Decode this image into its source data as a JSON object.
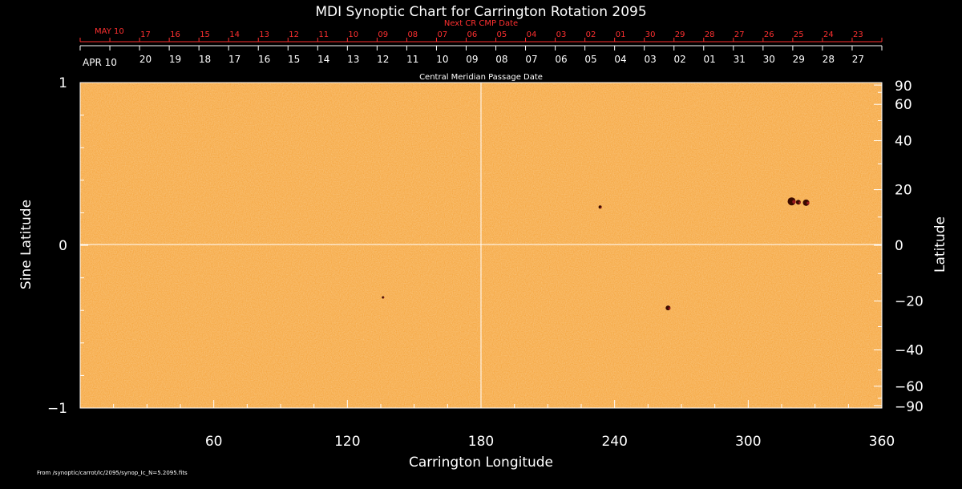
{
  "title": "MDI Synoptic Chart for Carrington Rotation 2095",
  "top_axis": {
    "label": "Next CR CMP Date",
    "first_label": "MAY 10",
    "dates": [
      "17",
      "16",
      "15",
      "14",
      "13",
      "12",
      "11",
      "10",
      "09",
      "08",
      "07",
      "06",
      "05",
      "04",
      "03",
      "02",
      "01",
      "30",
      "29",
      "28",
      "27",
      "26",
      "25",
      "24",
      "23"
    ]
  },
  "middle_axis": {
    "first_label": "APR 10",
    "dates": [
      "20",
      "19",
      "18",
      "17",
      "16",
      "15",
      "14",
      "13",
      "12",
      "11",
      "10",
      "09",
      "08",
      "07",
      "06",
      "05",
      "04",
      "03",
      "02",
      "01",
      "31",
      "30",
      "29",
      "28",
      "27"
    ],
    "label": "Central Meridian Passage Date"
  },
  "footer": "From /synoptic/carrot/Ic/2095/synop_Ic_N=5.2095.fits",
  "colors": {
    "map_fill": "#f5a33a",
    "map_fill_light": "#f7b657",
    "spot": "#3a0a00",
    "grid": "#ffffff"
  },
  "chart_data": {
    "type": "heatmap",
    "xlabel": "Carrington Longitude",
    "ylabel_left": "Sine Latitude",
    "ylabel_right": "Latitude",
    "xlim": [
      0,
      360
    ],
    "ylim": [
      -1,
      1
    ],
    "x_ticks": [
      60,
      120,
      180,
      240,
      300,
      360
    ],
    "y_left_ticks": [
      {
        "v": 1,
        "label": "1"
      },
      {
        "v": 0,
        "label": "0"
      },
      {
        "v": -1,
        "label": "−1"
      }
    ],
    "y_right_ticks": [
      {
        "deg": 90,
        "label": "90"
      },
      {
        "deg": 60,
        "label": "60"
      },
      {
        "deg": 40,
        "label": "40"
      },
      {
        "deg": 20,
        "label": "20"
      },
      {
        "deg": 0,
        "label": "0"
      },
      {
        "deg": -20,
        "label": "−20"
      },
      {
        "deg": -40,
        "label": "−40"
      },
      {
        "deg": -60,
        "label": "−60"
      },
      {
        "deg": -90,
        "label": "−90"
      }
    ],
    "spots": [
      {
        "lon": 319.5,
        "sinlat": 0.27,
        "size": 5
      },
      {
        "lon": 322.5,
        "sinlat": 0.265,
        "size": 3
      },
      {
        "lon": 326,
        "sinlat": 0.262,
        "size": 4
      },
      {
        "lon": 233.5,
        "sinlat": 0.235,
        "size": 2
      },
      {
        "lon": 264,
        "sinlat": -0.385,
        "size": 3
      },
      {
        "lon": 136,
        "sinlat": -0.32,
        "size": 1.5
      }
    ]
  }
}
